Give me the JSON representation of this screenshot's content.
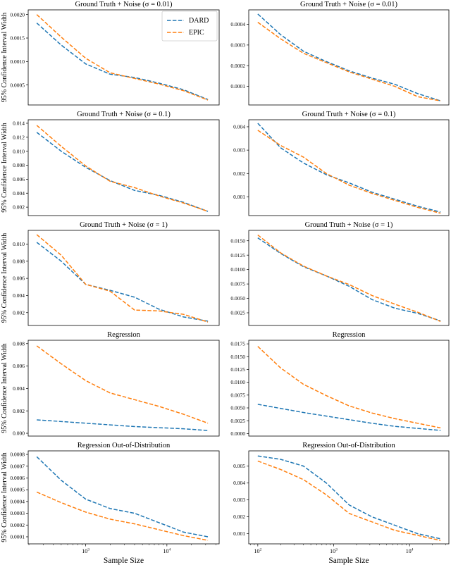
{
  "figure": {
    "xlabel": "Sample Size",
    "ylabel": "95% Confidence Interval Width",
    "colors": {
      "dard": "#1f77b4",
      "epic": "#ff7f0e",
      "frame": "#000000",
      "legend_edge": "#cccccc"
    }
  },
  "legend": {
    "entries": [
      {
        "label": "DARD",
        "color": "#1f77b4"
      },
      {
        "label": "EPIC",
        "color": "#ff7f0e"
      }
    ]
  },
  "chart_data": [
    {
      "type": "line",
      "title": "Ground Truth + Noise (σ = 0.01)",
      "ylabel": "95% Confidence Interval Width",
      "xlabel": "",
      "xscale": "log",
      "xlim": [
        196,
        44000
      ],
      "ylim": [
        7.5e-05,
        0.0021
      ],
      "yticks": {
        "values": [
          0.0005,
          0.001,
          0.0015,
          0.002
        ],
        "labels": [
          "0.0005",
          "0.0010",
          "0.0015",
          "0.0020"
        ]
      },
      "xticks": {
        "values": [],
        "labels": []
      },
      "legend": true,
      "series": [
        {
          "name": "DARD",
          "color": "#1f77b4",
          "x": [
            250,
            500,
            1000,
            2000,
            4000,
            8000,
            16000,
            32000
          ],
          "y": [
            0.00182,
            0.00135,
            0.00095,
            0.00073,
            0.00066,
            0.00054,
            0.0004,
            0.00019
          ]
        },
        {
          "name": "EPIC",
          "color": "#ff7f0e",
          "x": [
            250,
            500,
            1000,
            2000,
            4000,
            8000,
            16000,
            32000
          ],
          "y": [
            0.002,
            0.00152,
            0.00107,
            0.00076,
            0.00064,
            0.00052,
            0.00038,
            0.00018
          ]
        }
      ]
    },
    {
      "type": "line",
      "title": "Ground Truth + Noise (σ = 0.01)",
      "ylabel": "",
      "xlabel": "",
      "xscale": "log",
      "xlim": [
        76,
        33000
      ],
      "ylim": [
        1e-05,
        0.00047
      ],
      "yticks": {
        "values": [
          0.0001,
          0.0002,
          0.0003,
          0.0004
        ],
        "labels": [
          "0.0001",
          "0.0002",
          "0.0003",
          "0.0004"
        ]
      },
      "xticks": {
        "values": [],
        "labels": []
      },
      "legend": false,
      "series": [
        {
          "name": "DARD",
          "color": "#1f77b4",
          "x": [
            100,
            200,
            400,
            800,
            1600,
            3200,
            6400,
            12800,
            25600
          ],
          "y": [
            0.00045,
            0.00035,
            0.00027,
            0.00022,
            0.000175,
            0.00014,
            0.00011,
            6.5e-05,
            3e-05
          ]
        },
        {
          "name": "EPIC",
          "color": "#ff7f0e",
          "x": [
            100,
            200,
            400,
            800,
            1600,
            3200,
            6400,
            12800,
            25600
          ],
          "y": [
            0.00041,
            0.00033,
            0.00026,
            0.000215,
            0.00017,
            0.000135,
            0.0001,
            5e-05,
            3e-05
          ]
        }
      ]
    },
    {
      "type": "line",
      "title": "Ground Truth + Noise (σ = 0.1)",
      "ylabel": "95% Confidence Interval Width",
      "xlabel": "",
      "xscale": "log",
      "xlim": [
        196,
        44000
      ],
      "ylim": [
        0.0008,
        0.0145
      ],
      "yticks": {
        "values": [
          0.002,
          0.004,
          0.006,
          0.008,
          0.01,
          0.012,
          0.014
        ],
        "labels": [
          "0.002",
          "0.004",
          "0.006",
          "0.008",
          "0.010",
          "0.012",
          "0.014"
        ]
      },
      "xticks": {
        "values": [],
        "labels": []
      },
      "legend": false,
      "series": [
        {
          "name": "DARD",
          "color": "#1f77b4",
          "x": [
            250,
            500,
            1000,
            2000,
            4000,
            8000,
            16000,
            32000
          ],
          "y": [
            0.0127,
            0.01,
            0.0077,
            0.0058,
            0.0044,
            0.0037,
            0.0027,
            0.0014
          ]
        },
        {
          "name": "EPIC",
          "color": "#ff7f0e",
          "x": [
            250,
            500,
            1000,
            2000,
            4000,
            8000,
            16000,
            32000
          ],
          "y": [
            0.0137,
            0.0107,
            0.0079,
            0.0057,
            0.0048,
            0.0036,
            0.0026,
            0.0014
          ]
        }
      ]
    },
    {
      "type": "line",
      "title": "Ground Truth + Noise (σ = 0.1)",
      "ylabel": "",
      "xlabel": "",
      "xscale": "log",
      "xlim": [
        76,
        33000
      ],
      "ylim": [
        0.0002,
        0.0043
      ],
      "yticks": {
        "values": [
          0.001,
          0.002,
          0.003,
          0.004
        ],
        "labels": [
          "0.001",
          "0.002",
          "0.003",
          "0.004"
        ]
      },
      "xticks": {
        "values": [],
        "labels": []
      },
      "legend": false,
      "series": [
        {
          "name": "DARD",
          "color": "#1f77b4",
          "x": [
            100,
            200,
            400,
            800,
            1600,
            3200,
            6400,
            12800,
            25600
          ],
          "y": [
            0.00415,
            0.0031,
            0.00245,
            0.00195,
            0.0016,
            0.0012,
            0.0009,
            0.0006,
            0.00035
          ]
        },
        {
          "name": "EPIC",
          "color": "#ff7f0e",
          "x": [
            100,
            200,
            400,
            800,
            1600,
            3200,
            6400,
            12800,
            25600
          ],
          "y": [
            0.00385,
            0.0032,
            0.0027,
            0.002,
            0.0015,
            0.00115,
            0.00085,
            0.00055,
            0.0003
          ]
        }
      ]
    },
    {
      "type": "line",
      "title": "Ground Truth + Noise (σ = 1)",
      "ylabel": "95% Confidence Interval Width",
      "xlabel": "",
      "xscale": "log",
      "xlim": [
        196,
        44000
      ],
      "ylim": [
        0.0005,
        0.0116
      ],
      "yticks": {
        "values": [
          0.002,
          0.004,
          0.006,
          0.008,
          0.01
        ],
        "labels": [
          "0.002",
          "0.004",
          "0.006",
          "0.008",
          "0.010"
        ]
      },
      "xticks": {
        "values": [],
        "labels": []
      },
      "legend": false,
      "series": [
        {
          "name": "DARD",
          "color": "#1f77b4",
          "x": [
            250,
            500,
            1000,
            2000,
            4000,
            8000,
            16000,
            32000
          ],
          "y": [
            0.0102,
            0.008,
            0.0053,
            0.0046,
            0.0038,
            0.0024,
            0.0015,
            0.001
          ]
        },
        {
          "name": "EPIC",
          "color": "#ff7f0e",
          "x": [
            250,
            500,
            1000,
            2000,
            4000,
            8000,
            16000,
            32000
          ],
          "y": [
            0.0111,
            0.0087,
            0.0053,
            0.0045,
            0.0023,
            0.0022,
            0.0018,
            0.0009
          ]
        }
      ]
    },
    {
      "type": "line",
      "title": "Ground Truth + Noise (σ = 1)",
      "ylabel": "",
      "xlabel": "",
      "xscale": "log",
      "xlim": [
        76,
        33000
      ],
      "ylim": [
        0.0003,
        0.0168
      ],
      "yticks": {
        "values": [
          0.0025,
          0.005,
          0.0075,
          0.01,
          0.0125,
          0.015
        ],
        "labels": [
          "0.0025",
          "0.0050",
          "0.0075",
          "0.0100",
          "0.0125",
          "0.0150"
        ]
      },
      "xticks": {
        "values": [],
        "labels": []
      },
      "legend": false,
      "series": [
        {
          "name": "DARD",
          "color": "#1f77b4",
          "x": [
            100,
            200,
            400,
            800,
            1600,
            3200,
            6400,
            12800,
            25600
          ],
          "y": [
            0.0155,
            0.0128,
            0.0105,
            0.0089,
            0.0071,
            0.0048,
            0.0033,
            0.0024,
            0.0011
          ]
        },
        {
          "name": "EPIC",
          "color": "#ff7f0e",
          "x": [
            100,
            200,
            400,
            800,
            1600,
            3200,
            6400,
            12800,
            25600
          ],
          "y": [
            0.016,
            0.0129,
            0.0106,
            0.0089,
            0.0074,
            0.0055,
            0.004,
            0.0026,
            0.001
          ]
        }
      ]
    },
    {
      "type": "line",
      "title": "Regression",
      "ylabel": "95% Confidence Interval Width",
      "xlabel": "",
      "xscale": "log",
      "xlim": [
        196,
        44000
      ],
      "ylim": [
        -0.00025,
        0.0083
      ],
      "yticks": {
        "values": [
          0.0,
          0.002,
          0.004,
          0.006,
          0.008
        ],
        "labels": [
          "0.000",
          "0.002",
          "0.004",
          "0.006",
          "0.008"
        ]
      },
      "xticks": {
        "values": [],
        "labels": []
      },
      "legend": false,
      "series": [
        {
          "name": "DARD",
          "color": "#1f77b4",
          "x": [
            250,
            500,
            1000,
            2000,
            4000,
            8000,
            16000,
            32000
          ],
          "y": [
            0.0012,
            0.00105,
            0.0009,
            0.00075,
            0.0006,
            0.0005,
            0.0004,
            0.00025
          ]
        },
        {
          "name": "EPIC",
          "color": "#ff7f0e",
          "x": [
            250,
            500,
            1000,
            2000,
            4000,
            8000,
            16000,
            32000
          ],
          "y": [
            0.0078,
            0.0062,
            0.0047,
            0.0036,
            0.003,
            0.0024,
            0.0017,
            0.0009
          ]
        }
      ]
    },
    {
      "type": "line",
      "title": "Regression",
      "ylabel": "",
      "xlabel": "",
      "xscale": "log",
      "xlim": [
        76,
        33000
      ],
      "ylim": [
        -0.0005,
        0.0182
      ],
      "yticks": {
        "values": [
          0.0,
          0.0025,
          0.005,
          0.0075,
          0.01,
          0.0125,
          0.015,
          0.0175
        ],
        "labels": [
          "0.0000",
          "0.0025",
          "0.0050",
          "0.0075",
          "0.0100",
          "0.0125",
          "0.0150",
          "0.0175"
        ]
      },
      "xticks": {
        "values": [],
        "labels": []
      },
      "legend": false,
      "series": [
        {
          "name": "DARD",
          "color": "#1f77b4",
          "x": [
            100,
            200,
            400,
            800,
            1600,
            3200,
            6400,
            12800,
            25600
          ],
          "y": [
            0.0057,
            0.0049,
            0.0041,
            0.0034,
            0.0027,
            0.002,
            0.0014,
            0.001,
            0.0006
          ]
        },
        {
          "name": "EPIC",
          "color": "#ff7f0e",
          "x": [
            100,
            200,
            400,
            800,
            1600,
            3200,
            6400,
            12800,
            25600
          ],
          "y": [
            0.017,
            0.0128,
            0.0096,
            0.0074,
            0.0054,
            0.004,
            0.0029,
            0.002,
            0.0011
          ]
        }
      ]
    },
    {
      "type": "line",
      "title": "Regression Out-of-Distribution",
      "ylabel": "95% Confidence Interval Width",
      "xlabel": "Sample Size",
      "xscale": "log",
      "xlim": [
        196,
        44000
      ],
      "ylim": [
        4e-05,
        0.00083
      ],
      "yticks": {
        "values": [
          0.0001,
          0.0002,
          0.0003,
          0.0004,
          0.0005,
          0.0006,
          0.0007,
          0.0008
        ],
        "labels": [
          "0.0001",
          "0.0002",
          "0.0003",
          "0.0004",
          "0.0005",
          "0.0006",
          "0.0007",
          "0.0008"
        ]
      },
      "xticks": {
        "values": [
          1000,
          10000
        ],
        "labels": [
          "10^3",
          "10^4"
        ]
      },
      "legend": false,
      "series": [
        {
          "name": "DARD",
          "color": "#1f77b4",
          "x": [
            250,
            500,
            1000,
            2000,
            4000,
            8000,
            16000,
            32000
          ],
          "y": [
            0.00078,
            0.00058,
            0.00042,
            0.00034,
            0.0003,
            0.00022,
            0.00014,
            0.0001
          ]
        },
        {
          "name": "EPIC",
          "color": "#ff7f0e",
          "x": [
            250,
            500,
            1000,
            2000,
            4000,
            8000,
            16000,
            32000
          ],
          "y": [
            0.00048,
            0.00039,
            0.00031,
            0.00025,
            0.00021,
            0.00016,
            0.00011,
            7e-05
          ]
        }
      ]
    },
    {
      "type": "line",
      "title": "Regression Out-of-Distribution",
      "ylabel": "",
      "xlabel": "Sample Size",
      "xscale": "log",
      "xlim": [
        76,
        33000
      ],
      "ylim": [
        0.0004,
        0.0059
      ],
      "yticks": {
        "values": [
          0.001,
          0.002,
          0.003,
          0.004,
          0.005
        ],
        "labels": [
          "0.001",
          "0.002",
          "0.003",
          "0.004",
          "0.005"
        ]
      },
      "xticks": {
        "values": [
          100,
          1000,
          10000
        ],
        "labels": [
          "10^2",
          "10^3",
          "10^4"
        ]
      },
      "legend": false,
      "series": [
        {
          "name": "DARD",
          "color": "#1f77b4",
          "x": [
            100,
            200,
            400,
            800,
            1600,
            3200,
            6400,
            12800,
            25600
          ],
          "y": [
            0.0056,
            0.0054,
            0.005,
            0.004,
            0.0027,
            0.002,
            0.0015,
            0.001,
            0.0007
          ]
        },
        {
          "name": "EPIC",
          "color": "#ff7f0e",
          "x": [
            100,
            200,
            400,
            800,
            1600,
            3200,
            6400,
            12800,
            25600
          ],
          "y": [
            0.0053,
            0.0048,
            0.0042,
            0.0033,
            0.0022,
            0.0017,
            0.0012,
            0.0009,
            0.0006
          ]
        }
      ]
    }
  ]
}
